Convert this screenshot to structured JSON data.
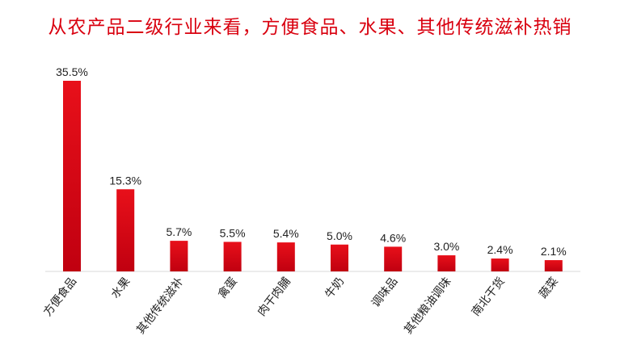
{
  "chart_data": {
    "type": "bar",
    "title": "从农产品二级行业来看，方便食品、水果、其他传统滋补热销",
    "categories": [
      "方便食品",
      "水果",
      "其他传统滋补",
      "禽蛋",
      "肉干肉脯",
      "牛奶",
      "调味品",
      "其他粮油调味",
      "南北干货",
      "蔬菜"
    ],
    "values": [
      35.5,
      15.3,
      5.7,
      5.5,
      5.4,
      5.0,
      4.6,
      3.0,
      2.4,
      2.1
    ],
    "data_labels": [
      "35.5%",
      "15.3%",
      "5.7%",
      "5.5%",
      "5.4%",
      "5.0%",
      "4.6%",
      "3.0%",
      "2.4%",
      "2.1%"
    ],
    "xlabel": "",
    "ylabel": "",
    "ylim": [
      0,
      35.5
    ],
    "grid": false,
    "legend": "none",
    "colors": {
      "bar_top": "#e8101a",
      "bar_bottom": "#c00010",
      "title": "#d9000f",
      "axis": "#d9d9d9"
    }
  }
}
